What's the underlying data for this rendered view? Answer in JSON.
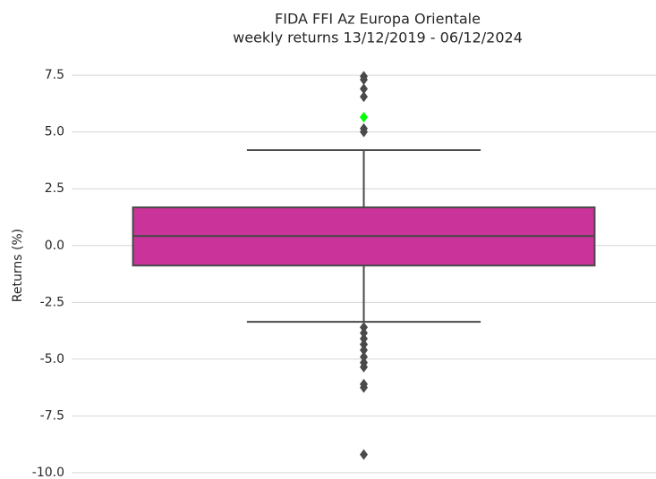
{
  "chart_data": {
    "type": "box",
    "title": "FIDA FFI Az Europa Orientale",
    "subtitle": "weekly returns 13/12/2019 - 06/12/2024",
    "ylabel": "Returns (%)",
    "boxes": [
      {
        "q1": -0.88,
        "median": 0.42,
        "q3": 1.68,
        "whislo": -3.36,
        "whishi": 4.2,
        "fliers": [
          7.45,
          7.3,
          6.9,
          6.55,
          5.15,
          5.0,
          -3.6,
          -3.85,
          -4.1,
          -4.35,
          -4.6,
          -4.9,
          -5.15,
          -5.35,
          -6.1,
          -6.25,
          -9.2
        ],
        "color": "#c9339a",
        "edge_color": "#4a4a4a"
      }
    ],
    "highlight": {
      "value": 5.65,
      "color": "#00ff00"
    },
    "ylim": [
      -10,
      8.25
    ],
    "yticks": [
      7.5,
      {
        "value": 5,
        "label": "5.0"
      },
      2.5,
      {
        "value": 0,
        "label": "0.0"
      },
      -2.5,
      {
        "value": -5,
        "label": "-5.0"
      },
      -7.5,
      {
        "value": -10,
        "label": "-10.0"
      }
    ],
    "grid": true
  }
}
